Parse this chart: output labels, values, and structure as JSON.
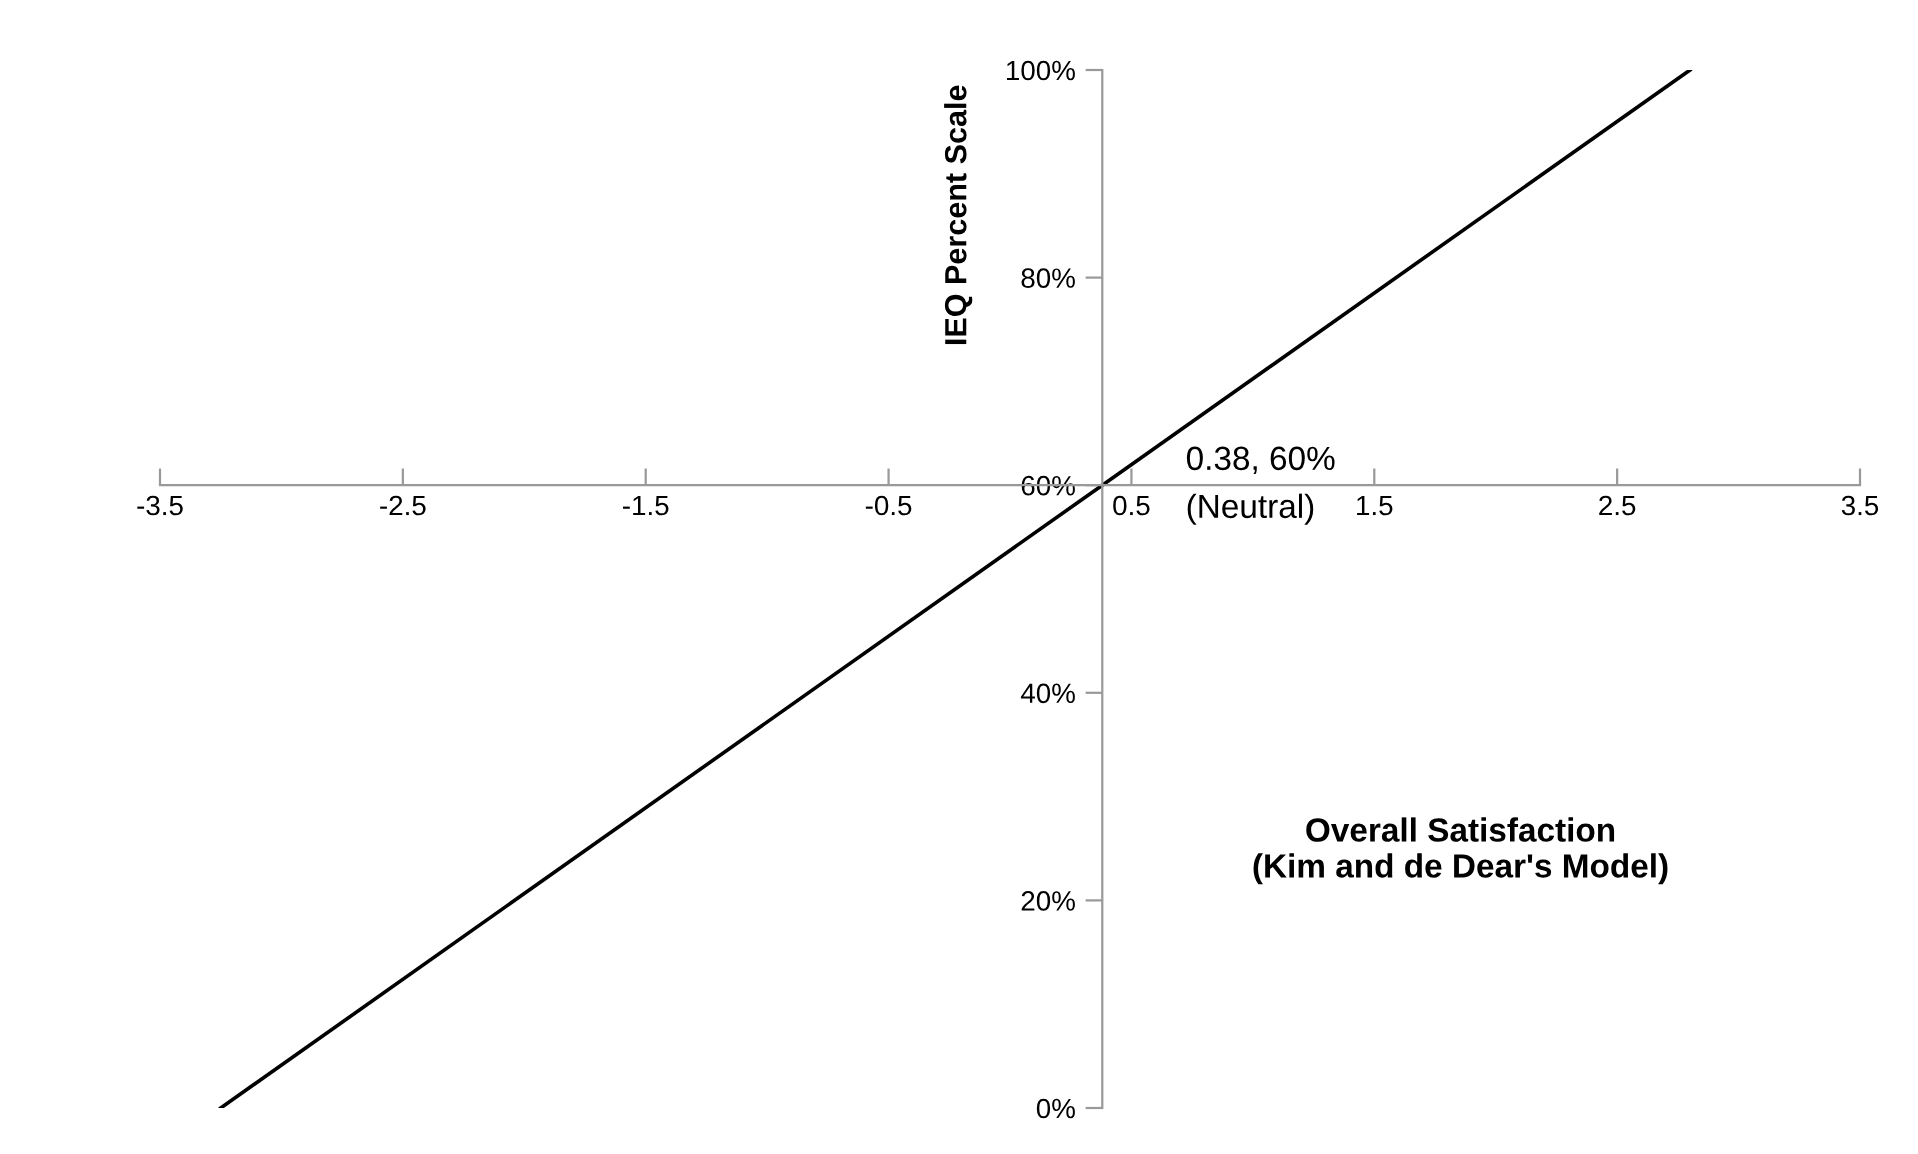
{
  "chart_data": {
    "type": "line",
    "xlabel": "Overall Satisfaction\n(Kim and de Dear's Model)",
    "ylabel": "IEQ Percent Scale",
    "x": [
      -3.25,
      0.38,
      2.8
    ],
    "series": [
      {
        "color": "#000000",
        "values": [
          0,
          60,
          100
        ]
      }
    ],
    "xlim": [
      -3.5,
      3.5
    ],
    "xticks": [
      -3.5,
      -2.5,
      -1.5,
      -0.5,
      0.5,
      1.5,
      2.5,
      3.5
    ],
    "ylim": [
      0,
      100
    ],
    "yticks": [
      {
        "value": 0,
        "label": "0%"
      },
      {
        "value": 20,
        "label": "20%"
      },
      {
        "value": 40,
        "label": "40%"
      },
      {
        "value": 60,
        "label": "60%"
      },
      {
        "value": 80,
        "label": "80%"
      },
      {
        "value": 100,
        "label": "100%"
      }
    ],
    "annotations": [
      {
        "text": "0.38, 60%\n(Neutral)",
        "x": 0.38,
        "y": 60
      }
    ],
    "grid": false,
    "legend": false,
    "marker": "none",
    "line_style": "solid"
  }
}
